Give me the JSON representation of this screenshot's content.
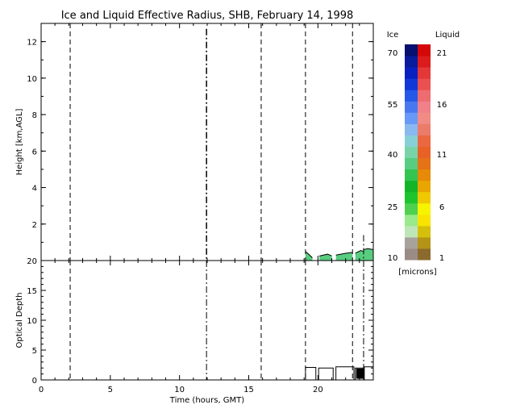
{
  "chart_data": [
    {
      "id": "radius",
      "type": "area",
      "title": "Ice and Liquid Effective Radius, SHB, February 14, 1998",
      "ylabel": "Height [km,AGL]",
      "xlim": [
        0,
        24
      ],
      "ylim": [
        0,
        13
      ],
      "yticks": [
        2,
        4,
        6,
        8,
        10,
        12
      ],
      "cloud_tops": [
        {
          "x": [
            19.1,
            19.4,
            19.6
          ],
          "y": [
            0.5,
            0.3,
            0.15
          ]
        },
        {
          "x": [
            20.1,
            20.7,
            21.0
          ],
          "y": [
            0.25,
            0.35,
            0.25
          ]
        },
        {
          "x": [
            21.3,
            22.0,
            22.5
          ],
          "y": [
            0.3,
            0.4,
            0.45
          ]
        },
        {
          "x": [
            22.7,
            23.1,
            23.3
          ],
          "y": [
            0.4,
            0.55,
            0.5
          ]
        },
        {
          "x": [
            23.3,
            23.6,
            24.0
          ],
          "y": [
            0.6,
            0.65,
            0.6
          ]
        }
      ],
      "dash_lines": [
        2.1,
        15.9,
        19.1,
        22.5
      ],
      "dashdot_lines": [
        11.95,
        23.3
      ],
      "dashdot_spans": [
        [
          0,
          12.7
        ],
        [
          0,
          1.4
        ]
      ]
    },
    {
      "id": "depth",
      "type": "line",
      "xlabel": "Time (hours, GMT)",
      "ylabel": "Optical Depth",
      "xlim": [
        0,
        24
      ],
      "ylim": [
        0,
        20
      ],
      "xticks": [
        0,
        5,
        10,
        15,
        20
      ],
      "yticks": [
        0,
        5,
        10,
        15,
        20
      ],
      "segments": [
        {
          "x": [
            19.1,
            19.1,
            19.85,
            19.85
          ],
          "y": [
            0,
            2.1,
            2.1,
            0
          ]
        },
        {
          "x": [
            20.05,
            20.05,
            21.1,
            21.1
          ],
          "y": [
            0,
            2.0,
            2.0,
            0
          ]
        },
        {
          "x": [
            21.3,
            21.3,
            22.6,
            22.6
          ],
          "y": [
            0,
            2.2,
            2.2,
            0
          ]
        },
        {
          "x": [
            22.7,
            22.7,
            23.3,
            23.3
          ],
          "y": [
            0,
            2.0,
            2.0,
            0
          ]
        },
        {
          "x": [
            23.35,
            23.35,
            24.0
          ],
          "y": [
            0,
            2.2,
            2.2
          ]
        }
      ],
      "dash_lines": [
        2.1,
        15.9,
        19.1,
        22.5
      ],
      "dashdot_lines": [
        11.95,
        23.3
      ]
    }
  ],
  "colorbar": {
    "ice_label": "Ice",
    "liquid_label": "Liquid",
    "units": "[microns]",
    "ice_ticks": [
      "70",
      "55",
      "40",
      "25",
      "10"
    ],
    "liquid_ticks": [
      "21",
      "16",
      "11",
      "6",
      "1"
    ],
    "ice_colors": [
      "#9b8b86",
      "#a8a29d",
      "#bfe6b8",
      "#98ea8a",
      "#50d050",
      "#1ec42e",
      "#14b428",
      "#34c450",
      "#58cc80",
      "#78d4a8",
      "#88d0d8",
      "#8ab8f0",
      "#6898f8",
      "#4878f0",
      "#2458e8",
      "#1038d8",
      "#0820c0",
      "#0a1a9c",
      "#061070"
    ],
    "liquid_colors": [
      "#8b6a2e",
      "#b49416",
      "#d4c00a",
      "#f8e400",
      "#f6f400",
      "#f0c800",
      "#eaa600",
      "#e68a08",
      "#e47216",
      "#e86228",
      "#ea6840",
      "#ec7c6a",
      "#f08c84",
      "#f0808a",
      "#ee6c70",
      "#ea5050",
      "#e43838",
      "#dc1c1c",
      "#d40808"
    ]
  },
  "colors": {
    "ice_fill": "#58cc80",
    "liquid_fill": "#1ec42e",
    "axis": "#000000"
  }
}
